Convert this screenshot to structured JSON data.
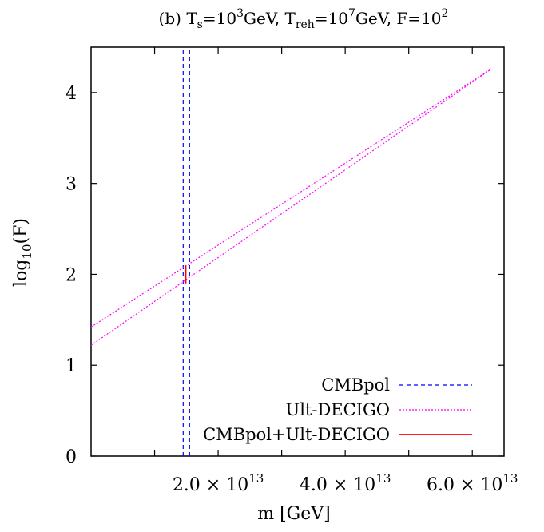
{
  "chart_data": {
    "type": "line",
    "title": {
      "prefix": "(b) T",
      "ts_sub": "s",
      "eq1": "=10",
      "ts_exp": "3",
      "unit1": "GeV, T",
      "treh_sub": "reh",
      "eq2": "=10",
      "treh_exp": "7",
      "unit2": "GeV, F=10",
      "f_exp": "2"
    },
    "xlabel": "m [GeV]",
    "ylabel": {
      "base": "log",
      "sub": "10",
      "tail": "(F)"
    },
    "xlim": [
      0,
      65000000000000.0
    ],
    "ylim": [
      0,
      4.5
    ],
    "x_ticks": [
      {
        "value": 20000000000000.0,
        "mantissa": "2.0",
        "times": "×",
        "base": "10",
        "exp": "13"
      },
      {
        "value": 40000000000000.0,
        "mantissa": "4.0",
        "times": "×",
        "base": "10",
        "exp": "13"
      },
      {
        "value": 60000000000000.0,
        "mantissa": "6.0",
        "times": "×",
        "base": "10",
        "exp": "13"
      }
    ],
    "y_ticks": [
      {
        "value": 0,
        "label": "0"
      },
      {
        "value": 1,
        "label": "1"
      },
      {
        "value": 2,
        "label": "2"
      },
      {
        "value": 3,
        "label": "3"
      },
      {
        "value": 4,
        "label": "4"
      }
    ],
    "series": [
      {
        "name": "CMBpol",
        "color": "#0000ff",
        "style": "dashed",
        "lines": [
          {
            "x": [
              14500000000000.0,
              14500000000000.0
            ],
            "y": [
              0,
              4.5
            ]
          },
          {
            "x": [
              15500000000000.0,
              15500000000000.0
            ],
            "y": [
              0,
              4.5
            ]
          }
        ]
      },
      {
        "name": "Ult-DECIGO",
        "color": "#ff00ff",
        "style": "dotted",
        "lines": [
          {
            "x": [
              0,
              63000000000000.0
            ],
            "y": [
              1.42,
              4.26
            ]
          },
          {
            "x": [
              0,
              63000000000000.0
            ],
            "y": [
              1.22,
              4.26
            ]
          }
        ]
      },
      {
        "name": "CMBpol+Ult-DECIGO",
        "color": "#ff0000",
        "style": "solid",
        "lines": [
          {
            "x": [
              14900000000000.0,
              14900000000000.0
            ],
            "y": [
              1.9,
              2.1
            ]
          }
        ]
      }
    ],
    "legend_position": "bottom-right",
    "grid": false
  }
}
